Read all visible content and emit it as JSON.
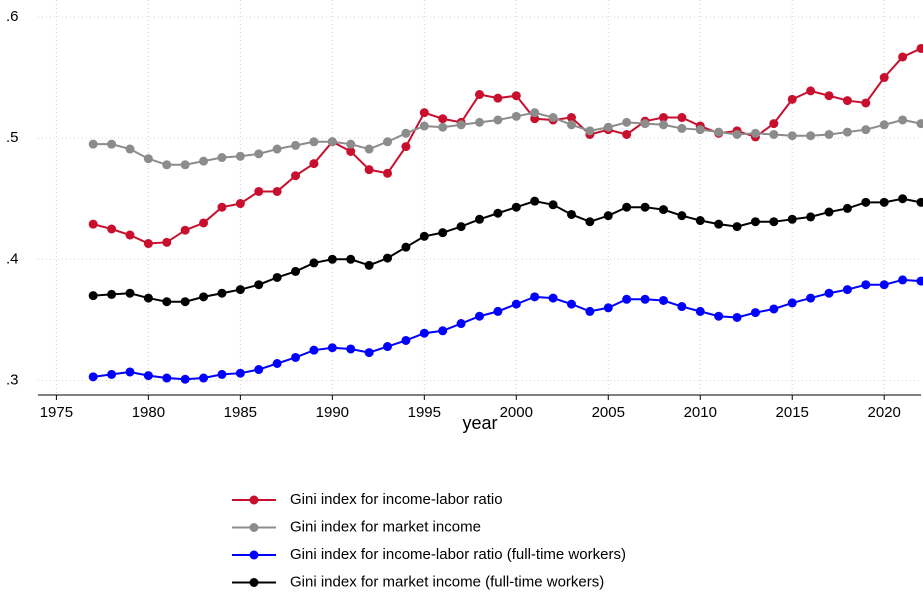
{
  "chart_data": {
    "type": "line",
    "x_label": "year",
    "x": [
      1977,
      1978,
      1979,
      1980,
      1981,
      1982,
      1983,
      1984,
      1985,
      1986,
      1987,
      1988,
      1989,
      1990,
      1991,
      1992,
      1993,
      1994,
      1995,
      1996,
      1997,
      1998,
      1999,
      2000,
      2001,
      2002,
      2003,
      2004,
      2005,
      2006,
      2007,
      2008,
      2009,
      2010,
      2011,
      2012,
      2013,
      2014,
      2015,
      2016,
      2017,
      2018,
      2019,
      2020,
      2021,
      2022
    ],
    "series": [
      {
        "name": "Gini index for income-labor ratio",
        "color": "#c8102e",
        "values": [
          0.429,
          0.425,
          0.42,
          0.413,
          0.414,
          0.424,
          0.43,
          0.443,
          0.446,
          0.456,
          0.456,
          0.469,
          0.479,
          0.497,
          0.489,
          0.474,
          0.471,
          0.493,
          0.521,
          0.516,
          0.513,
          0.536,
          0.533,
          0.535,
          0.516,
          0.515,
          0.517,
          0.503,
          0.507,
          0.503,
          0.514,
          0.517,
          0.517,
          0.51,
          0.504,
          0.506,
          0.501,
          0.512,
          0.532,
          0.539,
          0.535,
          0.531,
          0.529,
          0.55,
          0.567,
          0.574
        ]
      },
      {
        "name": "Gini index for market income",
        "color": "#8c8c8c",
        "values": [
          0.495,
          0.495,
          0.491,
          0.483,
          0.478,
          0.478,
          0.481,
          0.484,
          0.485,
          0.487,
          0.491,
          0.494,
          0.497,
          0.497,
          0.495,
          0.491,
          0.497,
          0.504,
          0.51,
          0.509,
          0.511,
          0.513,
          0.515,
          0.518,
          0.521,
          0.517,
          0.511,
          0.506,
          0.509,
          0.513,
          0.512,
          0.511,
          0.508,
          0.507,
          0.505,
          0.503,
          0.504,
          0.503,
          0.502,
          0.502,
          0.503,
          0.505,
          0.507,
          0.511,
          0.515,
          0.512
        ]
      },
      {
        "name": "Gini index for income-labor ratio (full-time workers)",
        "color": "#0000ff",
        "values": [
          0.303,
          0.305,
          0.307,
          0.304,
          0.302,
          0.301,
          0.302,
          0.305,
          0.306,
          0.309,
          0.314,
          0.319,
          0.325,
          0.327,
          0.326,
          0.323,
          0.328,
          0.333,
          0.339,
          0.341,
          0.347,
          0.353,
          0.357,
          0.363,
          0.369,
          0.368,
          0.363,
          0.357,
          0.36,
          0.367,
          0.367,
          0.366,
          0.361,
          0.357,
          0.353,
          0.352,
          0.356,
          0.359,
          0.364,
          0.368,
          0.372,
          0.375,
          0.379,
          0.379,
          0.383,
          0.382
        ]
      },
      {
        "name": "Gini index for market income (full-time workers)",
        "color": "#000000",
        "values": [
          0.37,
          0.371,
          0.372,
          0.368,
          0.365,
          0.365,
          0.369,
          0.372,
          0.375,
          0.379,
          0.385,
          0.39,
          0.397,
          0.4,
          0.4,
          0.395,
          0.401,
          0.41,
          0.419,
          0.422,
          0.427,
          0.433,
          0.438,
          0.443,
          0.448,
          0.445,
          0.437,
          0.431,
          0.436,
          0.443,
          0.443,
          0.441,
          0.436,
          0.432,
          0.429,
          0.427,
          0.431,
          0.431,
          0.433,
          0.435,
          0.439,
          0.442,
          0.447,
          0.447,
          0.45,
          0.447
        ]
      }
    ],
    "xlim": [
      1974,
      2022
    ],
    "xticks": [
      1975,
      1980,
      1985,
      1990,
      1995,
      2000,
      2005,
      2010,
      2015,
      2020
    ],
    "ylim": [
      0.288,
      0.614
    ],
    "yticks": [
      {
        "value": 0.3,
        "label": ".3"
      },
      {
        "value": 0.4,
        "label": ".4"
      },
      {
        "value": 0.5,
        "label": ".5"
      },
      {
        "value": 0.6,
        "label": ".6"
      }
    ],
    "grid": true,
    "legend": "bottom"
  }
}
